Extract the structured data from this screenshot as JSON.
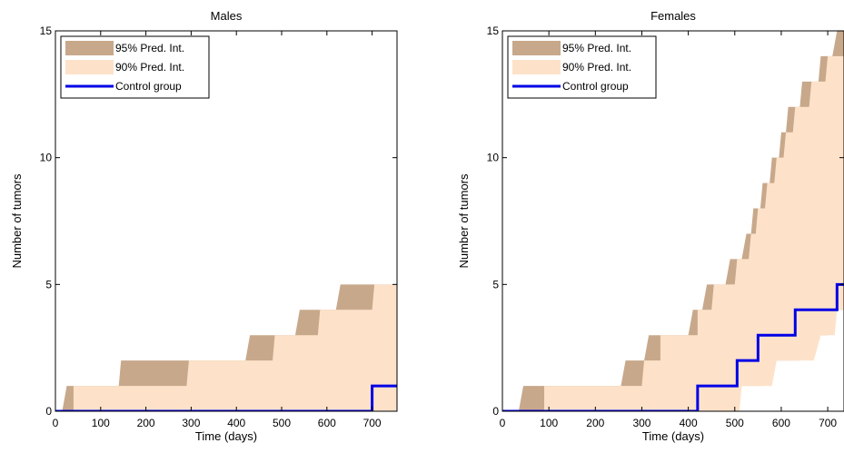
{
  "colors": {
    "band95": "#c8a88b",
    "band90": "#fde2c9",
    "control": "#0000e6",
    "axis": "#000000"
  },
  "chart_data": [
    {
      "type": "area",
      "title": "Males",
      "xlabel": "Time (days)",
      "ylabel": "Number of tumors",
      "xlim": [
        0,
        755
      ],
      "ylim": [
        0,
        15
      ],
      "xticks": [
        0,
        100,
        200,
        300,
        400,
        500,
        600,
        700
      ],
      "yticks": [
        0,
        5,
        10,
        15
      ],
      "grid": false,
      "legend_position": "top-left",
      "series": [
        {
          "name": "95% Pred. Int.",
          "kind": "band",
          "lower": [
            [
              0,
              0
            ],
            [
              755,
              0
            ]
          ],
          "upper": [
            [
              0,
              0
            ],
            [
              15,
              0
            ],
            [
              25,
              1
            ],
            [
              140,
              1
            ],
            [
              145,
              2
            ],
            [
              420,
              2
            ],
            [
              430,
              3
            ],
            [
              530,
              3
            ],
            [
              540,
              4
            ],
            [
              620,
              4
            ],
            [
              630,
              5
            ],
            [
              755,
              5
            ]
          ]
        },
        {
          "name": "90% Pred. Int.",
          "kind": "band",
          "lower": [
            [
              0,
              0
            ],
            [
              755,
              0
            ]
          ],
          "upper": [
            [
              0,
              0
            ],
            [
              40,
              0
            ],
            [
              40,
              1
            ],
            [
              290,
              1
            ],
            [
              295,
              2
            ],
            [
              480,
              2
            ],
            [
              485,
              3
            ],
            [
              580,
              3
            ],
            [
              585,
              4
            ],
            [
              700,
              4
            ],
            [
              705,
              5
            ],
            [
              755,
              5
            ]
          ]
        },
        {
          "name": "Control group",
          "kind": "step",
          "points": [
            [
              0,
              0
            ],
            [
              700,
              0
            ],
            [
              700,
              1
            ],
            [
              755,
              1
            ]
          ]
        }
      ]
    },
    {
      "type": "area",
      "title": "Females",
      "xlabel": "Time (days)",
      "ylabel": "Number of tumors",
      "xlim": [
        0,
        735
      ],
      "ylim": [
        0,
        15
      ],
      "xticks": [
        0,
        100,
        200,
        300,
        400,
        500,
        600,
        700
      ],
      "yticks": [
        0,
        5,
        10,
        15
      ],
      "grid": false,
      "legend_position": "top-left",
      "series": [
        {
          "name": "95% Pred. Int.",
          "kind": "band",
          "lower": [
            [
              0,
              0
            ],
            [
              500,
              0
            ],
            [
              510,
              1
            ],
            [
              560,
              1
            ],
            [
              570,
              2
            ],
            [
              640,
              2
            ],
            [
              650,
              3
            ],
            [
              700,
              3
            ],
            [
              715,
              4
            ],
            [
              735,
              4
            ]
          ],
          "upper": [
            [
              0,
              0
            ],
            [
              35,
              0
            ],
            [
              45,
              1
            ],
            [
              255,
              1
            ],
            [
              265,
              2
            ],
            [
              305,
              2
            ],
            [
              315,
              3
            ],
            [
              400,
              3
            ],
            [
              410,
              4
            ],
            [
              430,
              4
            ],
            [
              440,
              5
            ],
            [
              480,
              5
            ],
            [
              490,
              6
            ],
            [
              515,
              6
            ],
            [
              525,
              7
            ],
            [
              535,
              7
            ],
            [
              540,
              8
            ],
            [
              555,
              8
            ],
            [
              560,
              9
            ],
            [
              575,
              9
            ],
            [
              580,
              10
            ],
            [
              595,
              10
            ],
            [
              600,
              11
            ],
            [
              610,
              11
            ],
            [
              615,
              12
            ],
            [
              640,
              12
            ],
            [
              645,
              13
            ],
            [
              680,
              13
            ],
            [
              685,
              14
            ],
            [
              710,
              14
            ],
            [
              720,
              15
            ],
            [
              735,
              15
            ]
          ]
        },
        {
          "name": "90% Pred. Int.",
          "kind": "band",
          "lower": [
            [
              0,
              0
            ],
            [
              510,
              0
            ],
            [
              515,
              1
            ],
            [
              580,
              1
            ],
            [
              590,
              2
            ],
            [
              670,
              2
            ],
            [
              685,
              3
            ],
            [
              715,
              3
            ],
            [
              720,
              4
            ],
            [
              735,
              4
            ]
          ],
          "upper": [
            [
              0,
              0
            ],
            [
              90,
              0
            ],
            [
              90,
              1
            ],
            [
              300,
              1
            ],
            [
              305,
              2
            ],
            [
              340,
              2
            ],
            [
              340,
              3
            ],
            [
              420,
              3
            ],
            [
              420,
              4
            ],
            [
              450,
              4
            ],
            [
              455,
              5
            ],
            [
              500,
              5
            ],
            [
              505,
              6
            ],
            [
              530,
              6
            ],
            [
              535,
              7
            ],
            [
              545,
              7
            ],
            [
              550,
              8
            ],
            [
              565,
              8
            ],
            [
              570,
              9
            ],
            [
              585,
              9
            ],
            [
              590,
              10
            ],
            [
              605,
              10
            ],
            [
              610,
              11
            ],
            [
              625,
              11
            ],
            [
              630,
              12
            ],
            [
              660,
              12
            ],
            [
              665,
              13
            ],
            [
              695,
              13
            ],
            [
              700,
              14
            ],
            [
              735,
              14
            ]
          ]
        },
        {
          "name": "Control group",
          "kind": "step",
          "points": [
            [
              0,
              0
            ],
            [
              420,
              0
            ],
            [
              420,
              1
            ],
            [
              505,
              1
            ],
            [
              505,
              2
            ],
            [
              550,
              2
            ],
            [
              550,
              3
            ],
            [
              630,
              3
            ],
            [
              630,
              4
            ],
            [
              720,
              4
            ],
            [
              720,
              5
            ],
            [
              735,
              5
            ]
          ]
        }
      ]
    }
  ]
}
